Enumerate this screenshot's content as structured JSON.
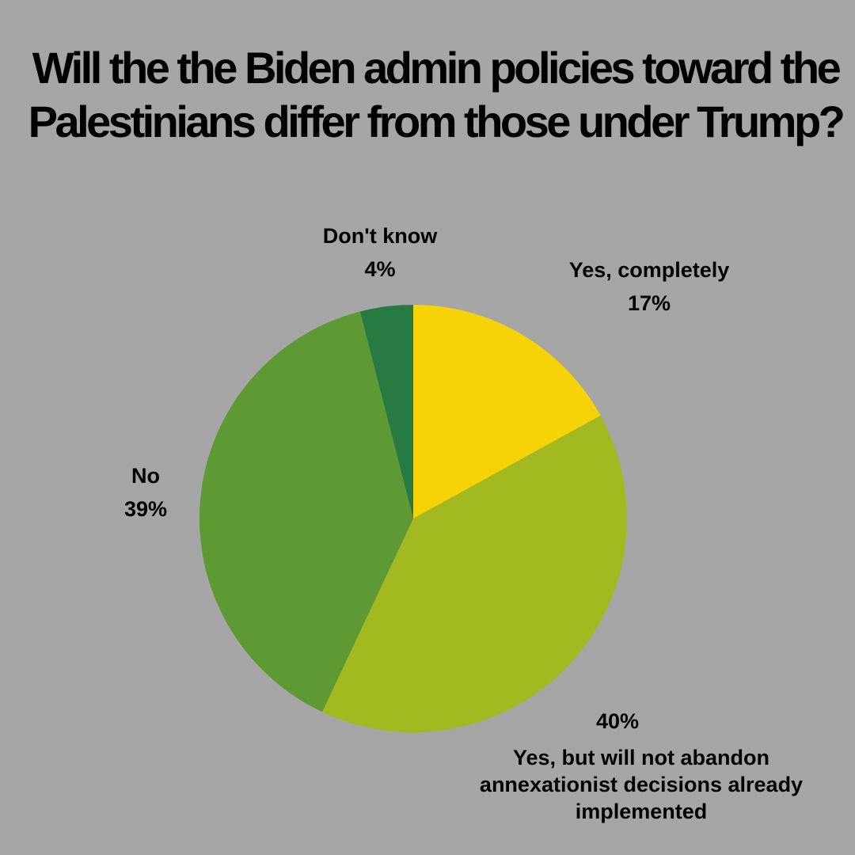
{
  "colors": {
    "background": "#a6a6a6",
    "yes_completely": "#f5d307",
    "yes_but": "#a3b920",
    "no": "#5e9a33",
    "dont_know": "#267a42"
  },
  "chart_data": {
    "type": "pie",
    "title": "Will the the Biden admin policies toward the Palestinians differ from those under Trump?",
    "start_angle_deg": 0,
    "direction": "clockwise",
    "slices": [
      {
        "label": "Yes, completely",
        "value": 17,
        "value_label": "17%",
        "color": "#f5d307"
      },
      {
        "label": "Yes, but will not abandon annexationist decisions already implemented",
        "value": 40,
        "value_label": "40%",
        "color": "#a3b920"
      },
      {
        "label": "No",
        "value": 39,
        "value_label": "39%",
        "color": "#5e9a33"
      },
      {
        "label": "Don't know",
        "value": 4,
        "value_label": "4%",
        "color": "#267a42"
      }
    ]
  }
}
